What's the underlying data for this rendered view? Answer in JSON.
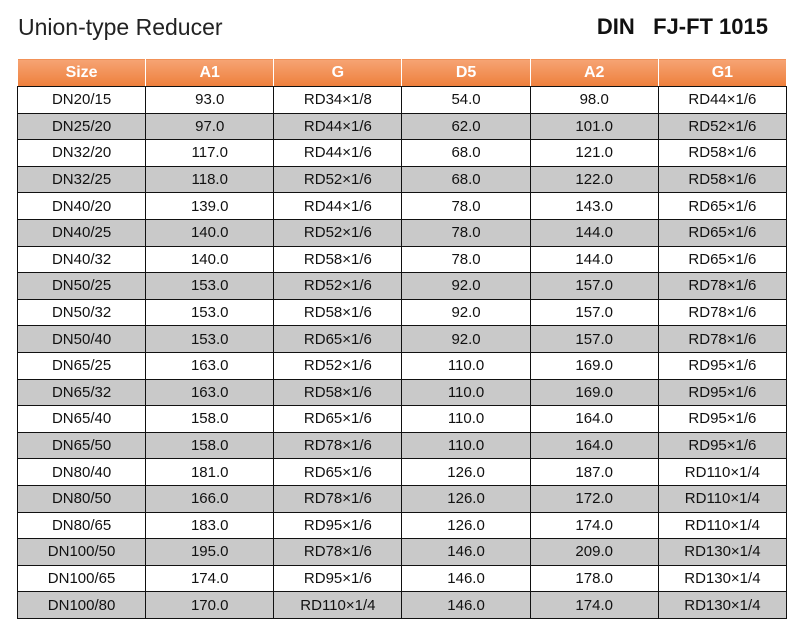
{
  "header": {
    "title": "Union-type Reducer",
    "standard": "DIN   FJ-FT 1015"
  },
  "table": {
    "columns": [
      "Size",
      "A1",
      "G",
      "D5",
      "A2",
      "G1"
    ],
    "rows": [
      [
        "DN20/15",
        "93.0",
        "RD34×1/8",
        "54.0",
        "98.0",
        "RD44×1/6"
      ],
      [
        "DN25/20",
        "97.0",
        "RD44×1/6",
        "62.0",
        "101.0",
        "RD52×1/6"
      ],
      [
        "DN32/20",
        "117.0",
        "RD44×1/6",
        "68.0",
        "121.0",
        "RD58×1/6"
      ],
      [
        "DN32/25",
        "118.0",
        "RD52×1/6",
        "68.0",
        "122.0",
        "RD58×1/6"
      ],
      [
        "DN40/20",
        "139.0",
        "RD44×1/6",
        "78.0",
        "143.0",
        "RD65×1/6"
      ],
      [
        "DN40/25",
        "140.0",
        "RD52×1/6",
        "78.0",
        "144.0",
        "RD65×1/6"
      ],
      [
        "DN40/32",
        "140.0",
        "RD58×1/6",
        "78.0",
        "144.0",
        "RD65×1/6"
      ],
      [
        "DN50/25",
        "153.0",
        "RD52×1/6",
        "92.0",
        "157.0",
        "RD78×1/6"
      ],
      [
        "DN50/32",
        "153.0",
        "RD58×1/6",
        "92.0",
        "157.0",
        "RD78×1/6"
      ],
      [
        "DN50/40",
        "153.0",
        "RD65×1/6",
        "92.0",
        "157.0",
        "RD78×1/6"
      ],
      [
        "DN65/25",
        "163.0",
        "RD52×1/6",
        "110.0",
        "169.0",
        "RD95×1/6"
      ],
      [
        "DN65/32",
        "163.0",
        "RD58×1/6",
        "110.0",
        "169.0",
        "RD95×1/6"
      ],
      [
        "DN65/40",
        "158.0",
        "RD65×1/6",
        "110.0",
        "164.0",
        "RD95×1/6"
      ],
      [
        "DN65/50",
        "158.0",
        "RD78×1/6",
        "110.0",
        "164.0",
        "RD95×1/6"
      ],
      [
        "DN80/40",
        "181.0",
        "RD65×1/6",
        "126.0",
        "187.0",
        "RD110×1/4"
      ],
      [
        "DN80/50",
        "166.0",
        "RD78×1/6",
        "126.0",
        "172.0",
        "RD110×1/4"
      ],
      [
        "DN80/65",
        "183.0",
        "RD95×1/6",
        "126.0",
        "174.0",
        "RD110×1/4"
      ],
      [
        "DN100/50",
        "195.0",
        "RD78×1/6",
        "146.0",
        "209.0",
        "RD130×1/4"
      ],
      [
        "DN100/65",
        "174.0",
        "RD95×1/6",
        "146.0",
        "178.0",
        "RD130×1/4"
      ],
      [
        "DN100/80",
        "170.0",
        "RD110×1/4",
        "146.0",
        "174.0",
        "RD130×1/4"
      ]
    ]
  }
}
